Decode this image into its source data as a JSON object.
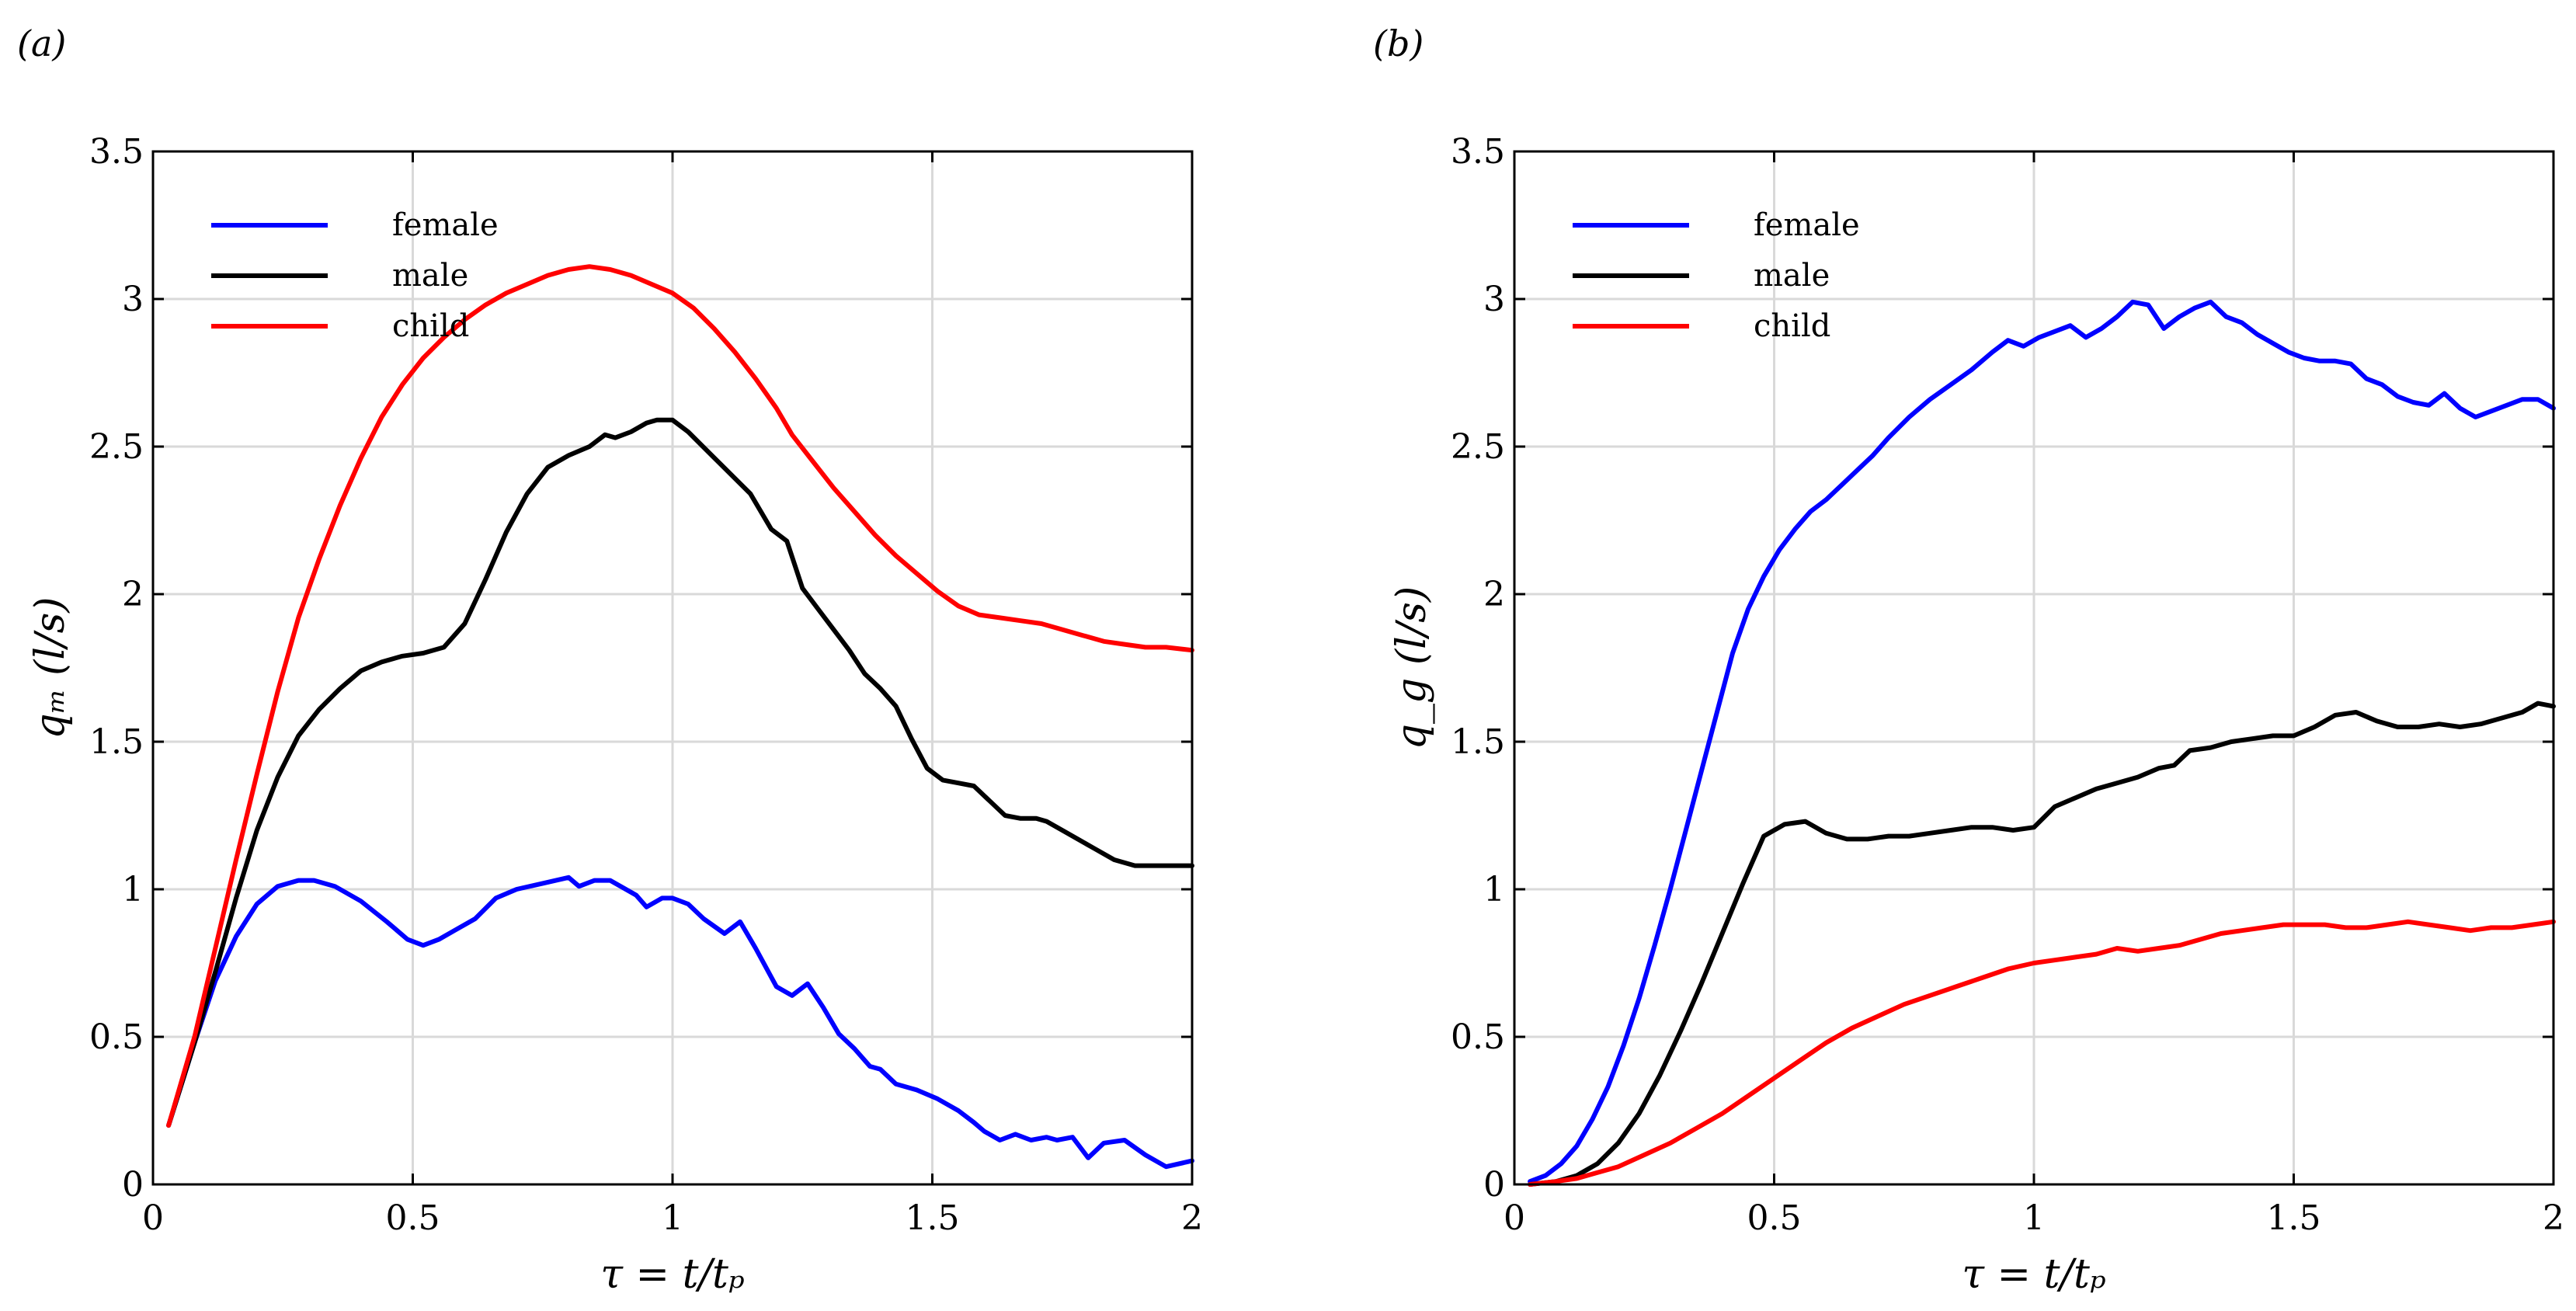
{
  "chart_data": [
    {
      "panel_label": "(a)",
      "type": "line",
      "xlabel": "τ = t/tₚ",
      "ylabel": "qₘ (l/s)",
      "xlim": [
        0,
        2
      ],
      "ylim": [
        0,
        3.5
      ],
      "xticks": [
        0,
        0.5,
        1,
        1.5,
        2
      ],
      "xtick_labels": [
        "0",
        "0.5",
        "1",
        "1.5",
        "2"
      ],
      "yticks": [
        0,
        0.5,
        1,
        1.5,
        2,
        2.5,
        3,
        3.5
      ],
      "ytick_labels": [
        "0",
        "0.5",
        "1",
        "1.5",
        "2",
        "2.5",
        "3",
        "3.5"
      ],
      "grid": true,
      "legend_position": "top-left",
      "series": [
        {
          "name": "female",
          "color": "#0000ff",
          "x": [
            0.03,
            0.08,
            0.12,
            0.16,
            0.2,
            0.24,
            0.28,
            0.31,
            0.35,
            0.4,
            0.45,
            0.49,
            0.52,
            0.55,
            0.58,
            0.62,
            0.66,
            0.7,
            0.75,
            0.8,
            0.82,
            0.85,
            0.88,
            0.91,
            0.93,
            0.95,
            0.98,
            1.0,
            1.03,
            1.06,
            1.1,
            1.13,
            1.16,
            1.2,
            1.23,
            1.26,
            1.29,
            1.32,
            1.35,
            1.38,
            1.4,
            1.43,
            1.47,
            1.51,
            1.55,
            1.58,
            1.6,
            1.63,
            1.66,
            1.69,
            1.72,
            1.74,
            1.77,
            1.8,
            1.83,
            1.87,
            1.91,
            1.95,
            2.0
          ],
          "y": [
            0.2,
            0.48,
            0.69,
            0.84,
            0.95,
            1.01,
            1.03,
            1.03,
            1.01,
            0.96,
            0.89,
            0.83,
            0.81,
            0.83,
            0.86,
            0.9,
            0.97,
            1.0,
            1.02,
            1.04,
            1.01,
            1.03,
            1.03,
            1.0,
            0.98,
            0.94,
            0.97,
            0.97,
            0.95,
            0.9,
            0.85,
            0.89,
            0.8,
            0.67,
            0.64,
            0.68,
            0.6,
            0.51,
            0.46,
            0.4,
            0.39,
            0.34,
            0.32,
            0.29,
            0.25,
            0.21,
            0.18,
            0.15,
            0.17,
            0.15,
            0.16,
            0.15,
            0.16,
            0.09,
            0.14,
            0.15,
            0.1,
            0.06,
            0.08
          ]
        },
        {
          "name": "male",
          "color": "#000000",
          "x": [
            0.03,
            0.08,
            0.12,
            0.16,
            0.2,
            0.24,
            0.28,
            0.32,
            0.36,
            0.4,
            0.44,
            0.48,
            0.52,
            0.56,
            0.6,
            0.64,
            0.68,
            0.72,
            0.76,
            0.8,
            0.84,
            0.87,
            0.89,
            0.92,
            0.95,
            0.97,
            1.0,
            1.03,
            1.07,
            1.11,
            1.15,
            1.19,
            1.22,
            1.25,
            1.28,
            1.31,
            1.34,
            1.37,
            1.4,
            1.43,
            1.46,
            1.49,
            1.52,
            1.55,
            1.58,
            1.61,
            1.64,
            1.67,
            1.7,
            1.72,
            1.75,
            1.78,
            1.81,
            1.85,
            1.89,
            1.93,
            1.96,
            2.0
          ],
          "y": [
            0.2,
            0.48,
            0.72,
            0.97,
            1.2,
            1.38,
            1.52,
            1.61,
            1.68,
            1.74,
            1.77,
            1.79,
            1.8,
            1.82,
            1.9,
            2.05,
            2.21,
            2.34,
            2.43,
            2.47,
            2.5,
            2.54,
            2.53,
            2.55,
            2.58,
            2.59,
            2.59,
            2.55,
            2.48,
            2.41,
            2.34,
            2.22,
            2.18,
            2.02,
            1.95,
            1.88,
            1.81,
            1.73,
            1.68,
            1.62,
            1.51,
            1.41,
            1.37,
            1.36,
            1.35,
            1.3,
            1.25,
            1.24,
            1.24,
            1.23,
            1.2,
            1.17,
            1.14,
            1.1,
            1.08,
            1.08,
            1.08,
            1.08
          ]
        },
        {
          "name": "child",
          "color": "#ff0000",
          "x": [
            0.03,
            0.08,
            0.12,
            0.16,
            0.2,
            0.24,
            0.28,
            0.32,
            0.36,
            0.4,
            0.44,
            0.48,
            0.52,
            0.56,
            0.6,
            0.64,
            0.68,
            0.72,
            0.76,
            0.8,
            0.84,
            0.88,
            0.92,
            0.96,
            1.0,
            1.04,
            1.08,
            1.12,
            1.16,
            1.2,
            1.23,
            1.27,
            1.31,
            1.35,
            1.39,
            1.43,
            1.47,
            1.51,
            1.55,
            1.59,
            1.63,
            1.67,
            1.71,
            1.75,
            1.79,
            1.83,
            1.87,
            1.91,
            1.95,
            2.0
          ],
          "y": [
            0.2,
            0.5,
            0.8,
            1.1,
            1.39,
            1.67,
            1.92,
            2.12,
            2.3,
            2.46,
            2.6,
            2.71,
            2.8,
            2.87,
            2.93,
            2.98,
            3.02,
            3.05,
            3.08,
            3.1,
            3.11,
            3.1,
            3.08,
            3.05,
            3.02,
            2.97,
            2.9,
            2.82,
            2.73,
            2.63,
            2.54,
            2.45,
            2.36,
            2.28,
            2.2,
            2.13,
            2.07,
            2.01,
            1.96,
            1.93,
            1.92,
            1.91,
            1.9,
            1.88,
            1.86,
            1.84,
            1.83,
            1.82,
            1.82,
            1.81
          ]
        }
      ]
    },
    {
      "panel_label": "(b)",
      "type": "line",
      "xlabel": "τ = t/tₚ",
      "ylabel": "q_g (l/s)",
      "xlim": [
        0,
        2
      ],
      "ylim": [
        0,
        3.5
      ],
      "xticks": [
        0,
        0.5,
        1,
        1.5,
        2
      ],
      "xtick_labels": [
        "0",
        "0.5",
        "1",
        "1.5",
        "2"
      ],
      "yticks": [
        0,
        0.5,
        1,
        1.5,
        2,
        2.5,
        3,
        3.5
      ],
      "ytick_labels": [
        "0",
        "0.5",
        "1",
        "1.5",
        "2",
        "2.5",
        "3",
        "3.5"
      ],
      "grid": true,
      "legend_position": "top-left",
      "series": [
        {
          "name": "female",
          "color": "#0000ff",
          "x": [
            0.03,
            0.06,
            0.09,
            0.12,
            0.15,
            0.18,
            0.21,
            0.24,
            0.27,
            0.3,
            0.33,
            0.36,
            0.39,
            0.42,
            0.45,
            0.48,
            0.51,
            0.54,
            0.57,
            0.6,
            0.63,
            0.66,
            0.69,
            0.72,
            0.76,
            0.8,
            0.84,
            0.88,
            0.92,
            0.95,
            0.98,
            1.01,
            1.04,
            1.07,
            1.1,
            1.13,
            1.16,
            1.19,
            1.22,
            1.25,
            1.28,
            1.31,
            1.34,
            1.37,
            1.4,
            1.43,
            1.46,
            1.49,
            1.52,
            1.55,
            1.58,
            1.61,
            1.64,
            1.67,
            1.7,
            1.73,
            1.76,
            1.79,
            1.82,
            1.85,
            1.88,
            1.91,
            1.94,
            1.97,
            2.0
          ],
          "y": [
            0.01,
            0.03,
            0.07,
            0.13,
            0.22,
            0.33,
            0.47,
            0.63,
            0.81,
            1.0,
            1.2,
            1.4,
            1.6,
            1.8,
            1.95,
            2.06,
            2.15,
            2.22,
            2.28,
            2.32,
            2.37,
            2.42,
            2.47,
            2.53,
            2.6,
            2.66,
            2.71,
            2.76,
            2.82,
            2.86,
            2.84,
            2.87,
            2.89,
            2.91,
            2.87,
            2.9,
            2.94,
            2.99,
            2.98,
            2.9,
            2.94,
            2.97,
            2.99,
            2.94,
            2.92,
            2.88,
            2.85,
            2.82,
            2.8,
            2.79,
            2.79,
            2.78,
            2.73,
            2.71,
            2.67,
            2.65,
            2.64,
            2.68,
            2.63,
            2.6,
            2.62,
            2.64,
            2.66,
            2.66,
            2.63
          ]
        },
        {
          "name": "male",
          "color": "#000000",
          "x": [
            0.03,
            0.08,
            0.12,
            0.16,
            0.2,
            0.24,
            0.28,
            0.32,
            0.36,
            0.4,
            0.44,
            0.48,
            0.52,
            0.56,
            0.6,
            0.64,
            0.68,
            0.72,
            0.76,
            0.8,
            0.84,
            0.88,
            0.92,
            0.96,
            1.0,
            1.04,
            1.08,
            1.12,
            1.16,
            1.2,
            1.24,
            1.27,
            1.3,
            1.34,
            1.38,
            1.42,
            1.46,
            1.5,
            1.54,
            1.58,
            1.62,
            1.66,
            1.7,
            1.74,
            1.78,
            1.82,
            1.86,
            1.9,
            1.94,
            1.97,
            2.0
          ],
          "y": [
            0.0,
            0.01,
            0.03,
            0.07,
            0.14,
            0.24,
            0.37,
            0.52,
            0.68,
            0.85,
            1.02,
            1.18,
            1.22,
            1.23,
            1.19,
            1.17,
            1.17,
            1.18,
            1.18,
            1.19,
            1.2,
            1.21,
            1.21,
            1.2,
            1.21,
            1.28,
            1.31,
            1.34,
            1.36,
            1.38,
            1.41,
            1.42,
            1.47,
            1.48,
            1.5,
            1.51,
            1.52,
            1.52,
            1.55,
            1.59,
            1.6,
            1.57,
            1.55,
            1.55,
            1.56,
            1.55,
            1.56,
            1.58,
            1.6,
            1.63,
            1.62
          ]
        },
        {
          "name": "child",
          "color": "#ff0000",
          "x": [
            0.03,
            0.08,
            0.12,
            0.16,
            0.2,
            0.25,
            0.3,
            0.35,
            0.4,
            0.45,
            0.5,
            0.55,
            0.6,
            0.65,
            0.7,
            0.75,
            0.8,
            0.85,
            0.9,
            0.95,
            1.0,
            1.04,
            1.08,
            1.12,
            1.16,
            1.2,
            1.24,
            1.28,
            1.32,
            1.36,
            1.4,
            1.44,
            1.48,
            1.52,
            1.56,
            1.6,
            1.64,
            1.68,
            1.72,
            1.76,
            1.8,
            1.84,
            1.88,
            1.92,
            1.96,
            2.0
          ],
          "y": [
            0.0,
            0.01,
            0.02,
            0.04,
            0.06,
            0.1,
            0.14,
            0.19,
            0.24,
            0.3,
            0.36,
            0.42,
            0.48,
            0.53,
            0.57,
            0.61,
            0.64,
            0.67,
            0.7,
            0.73,
            0.75,
            0.76,
            0.77,
            0.78,
            0.8,
            0.79,
            0.8,
            0.81,
            0.83,
            0.85,
            0.86,
            0.87,
            0.88,
            0.88,
            0.88,
            0.87,
            0.87,
            0.88,
            0.89,
            0.88,
            0.87,
            0.86,
            0.87,
            0.87,
            0.88,
            0.89
          ]
        }
      ]
    }
  ]
}
